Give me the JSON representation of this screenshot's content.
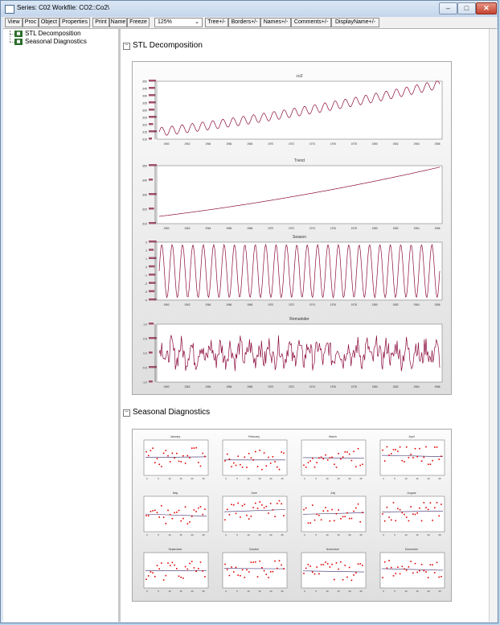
{
  "window": {
    "title": "Series: C02   Workfile: CO2::Co2\\",
    "buttons": {
      "minimize": "–",
      "maximize": "□",
      "close": "✕"
    }
  },
  "toolbar": {
    "buttons": [
      "View",
      "Proc",
      "Object",
      "Properties",
      "Print",
      "Name",
      "Freeze"
    ],
    "zoom": "125%",
    "toggles": [
      "Tree+/-",
      "Borders+/-",
      "Names+/-",
      "Comments+/-",
      "DisplayName+/-"
    ]
  },
  "tree": {
    "items": [
      {
        "label": "STL Decomposition",
        "icon": "table-icon"
      },
      {
        "label": "Seasonal Diagnostics",
        "icon": "table-icon"
      }
    ]
  },
  "sections": {
    "stl": {
      "title": "STL Decomposition",
      "toggle": "−"
    },
    "seasonal": {
      "title": "Seasonal Diagnostics",
      "toggle": "−"
    }
  },
  "colors": {
    "line": "#8b0a3c",
    "hist": "#a05070",
    "dot": "#e00000",
    "trend": "#3a2a6a"
  },
  "chart_data": [
    {
      "type": "line",
      "title": "co2",
      "x_ticks": [
        "1960",
        "1962",
        "1964",
        "1966",
        "1968",
        "1970",
        "1972",
        "1974",
        "1976",
        "1978",
        "1980",
        "1982",
        "1984",
        "1986"
      ],
      "y_ticks": [
        "310",
        "315",
        "320",
        "325",
        "330",
        "335",
        "340",
        "345",
        "350"
      ],
      "ylim": [
        310,
        350
      ],
      "series": [
        {
          "trend_start": 315,
          "trend_end": 348,
          "seasonal_amplitude": 3
        }
      ]
    },
    {
      "type": "line",
      "title": "Trend",
      "x_ticks": [
        "1960",
        "1962",
        "1964",
        "1966",
        "1968",
        "1970",
        "1972",
        "1974",
        "1976",
        "1978",
        "1980",
        "1982",
        "1984",
        "1986"
      ],
      "y_ticks": [
        "310",
        "320",
        "330",
        "340",
        "350"
      ],
      "ylim": [
        310,
        350
      ],
      "series": [
        {
          "trend_start": 315,
          "trend_end": 349,
          "seasonal_amplitude": 0
        }
      ]
    },
    {
      "type": "line",
      "title": "Season",
      "x_ticks": [
        "1960",
        "1962",
        "1964",
        "1966",
        "1968",
        "1970",
        "1972",
        "1974",
        "1976",
        "1978",
        "1980",
        "1982",
        "1984",
        "1986"
      ],
      "y_ticks": [
        "-4",
        "-3",
        "-2",
        "-1",
        "0",
        "1",
        "2",
        "3"
      ],
      "ylim": [
        -4,
        3
      ],
      "series": [
        {
          "amplitude": 3.2,
          "cycles": 27
        }
      ]
    },
    {
      "type": "line",
      "title": "Remainder",
      "x_ticks": [
        "1960",
        "1962",
        "1964",
        "1966",
        "1968",
        "1970",
        "1972",
        "1974",
        "1976",
        "1978",
        "1980",
        "1982",
        "1984",
        "1986"
      ],
      "y_ticks": [
        "-1.0",
        "-0.5",
        "0.0",
        "0.5",
        "1.0"
      ],
      "ylim": [
        -1.0,
        1.0
      ],
      "series": [
        {
          "noise_amplitude": 0.45
        }
      ]
    },
    {
      "type": "scatter",
      "title": "Seasonal Diagnostics",
      "panels": [
        {
          "month": "January",
          "level": 0.0
        },
        {
          "month": "February",
          "level": 0.0
        },
        {
          "month": "March",
          "level": 0.0
        },
        {
          "month": "April",
          "level": 0.0
        },
        {
          "month": "May",
          "level": 0.0
        },
        {
          "month": "June",
          "level": 0.0
        },
        {
          "month": "July",
          "level": 0.0
        },
        {
          "month": "August",
          "level": 0.0
        },
        {
          "month": "September",
          "level": 0.0
        },
        {
          "month": "October",
          "level": 0.0
        },
        {
          "month": "November",
          "level": 0.0
        },
        {
          "month": "December",
          "level": 0.0
        }
      ],
      "x_ticks": [
        "0",
        "5",
        "10",
        "15",
        "20",
        "25"
      ]
    }
  ]
}
